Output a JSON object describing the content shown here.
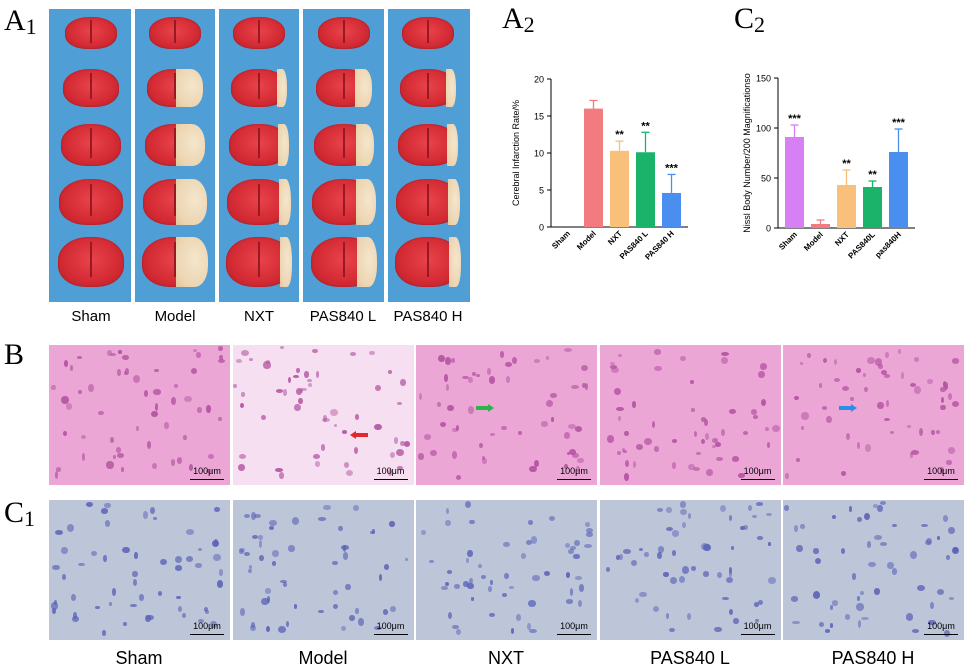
{
  "panels": {
    "a1": {
      "letter": "A",
      "sub": "1"
    },
    "a2": {
      "letter": "A",
      "sub": "2"
    },
    "c2": {
      "letter": "C",
      "sub": "2"
    },
    "b": {
      "letter": "B"
    },
    "c1": {
      "letter": "C",
      "sub": "1"
    }
  },
  "a1_labels": [
    "Sham",
    "Model",
    "NXT",
    "PAS840 L",
    "PAS840 H"
  ],
  "bottom_labels": [
    "Sham",
    "Model",
    "NXT",
    "PAS840 L",
    "PAS840 H"
  ],
  "scale_label": "100μm",
  "colors": {
    "a1_background": "#4f9fd6",
    "he_stain": "#e99ad0",
    "nissl_stain": "#b8c2d8",
    "arrow_model": "#e5262a",
    "arrow_nxt": "#2db34a",
    "arrow_pas840h": "#2a8ee8"
  },
  "chart_data": [
    {
      "type": "bar",
      "ylabel": "Cerebral Infarction Rate/%",
      "categories": [
        "Sham",
        "Model",
        "NXT",
        "PAS840 L",
        "PAS840 H"
      ],
      "values": [
        0,
        16.0,
        10.3,
        10.1,
        4.6
      ],
      "errors": [
        0,
        1.1,
        1.3,
        2.7,
        2.5
      ],
      "significance": [
        "",
        "",
        "**",
        "**",
        "***"
      ],
      "colors": [
        "#f27b7f",
        "#f27b7f",
        "#f9c07c",
        "#1bb36a",
        "#4a8ff0"
      ],
      "ylim": [
        0,
        20
      ],
      "yticks": [
        0,
        5,
        10,
        15,
        20
      ]
    },
    {
      "type": "bar",
      "ylabel": "Nissl Body Number/200 Magnificationso",
      "categories": [
        "Sham",
        "Model",
        "NXT",
        "PAS840L",
        "pas840H"
      ],
      "values": [
        91,
        4,
        43,
        41,
        76
      ],
      "errors": [
        12,
        4,
        15,
        6,
        23
      ],
      "significance": [
        "***",
        "",
        "**",
        "**",
        "***"
      ],
      "colors": [
        "#d780f3",
        "#f27b7f",
        "#f9c07c",
        "#1bb36a",
        "#4a8ff0"
      ],
      "ylim": [
        0,
        150
      ],
      "yticks": [
        0,
        50,
        100,
        150
      ]
    }
  ]
}
